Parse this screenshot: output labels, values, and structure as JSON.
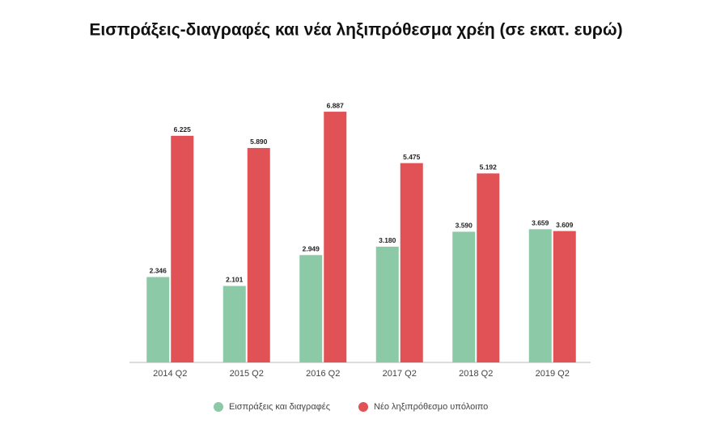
{
  "chart_data": {
    "type": "bar",
    "title": "Εισπράξεις-διαγραφές και νέα ληξιπρόθεσμα χρέη (σε εκατ. ευρώ)",
    "categories": [
      "2014 Q2",
      "2015 Q2",
      "2016 Q2",
      "2017 Q2",
      "2018 Q2",
      "2019 Q2"
    ],
    "series": [
      {
        "name": "Εισπράξεις και διαγραφές",
        "color": "#8cc9a6",
        "values": [
          2346,
          2101,
          2949,
          3180,
          3590,
          3659
        ],
        "value_labels": [
          "2.346",
          "2.101",
          "2.949",
          "3.180",
          "3.590",
          "3.659"
        ]
      },
      {
        "name": "Νέο ληξιπρόθεσμο υπόλοιπο",
        "color": "#e05255",
        "values": [
          6225,
          5890,
          6887,
          5475,
          5192,
          3609
        ],
        "value_labels": [
          "6.225",
          "5.890",
          "6.887",
          "5.475",
          "5.192",
          "3.609"
        ]
      }
    ]
  }
}
